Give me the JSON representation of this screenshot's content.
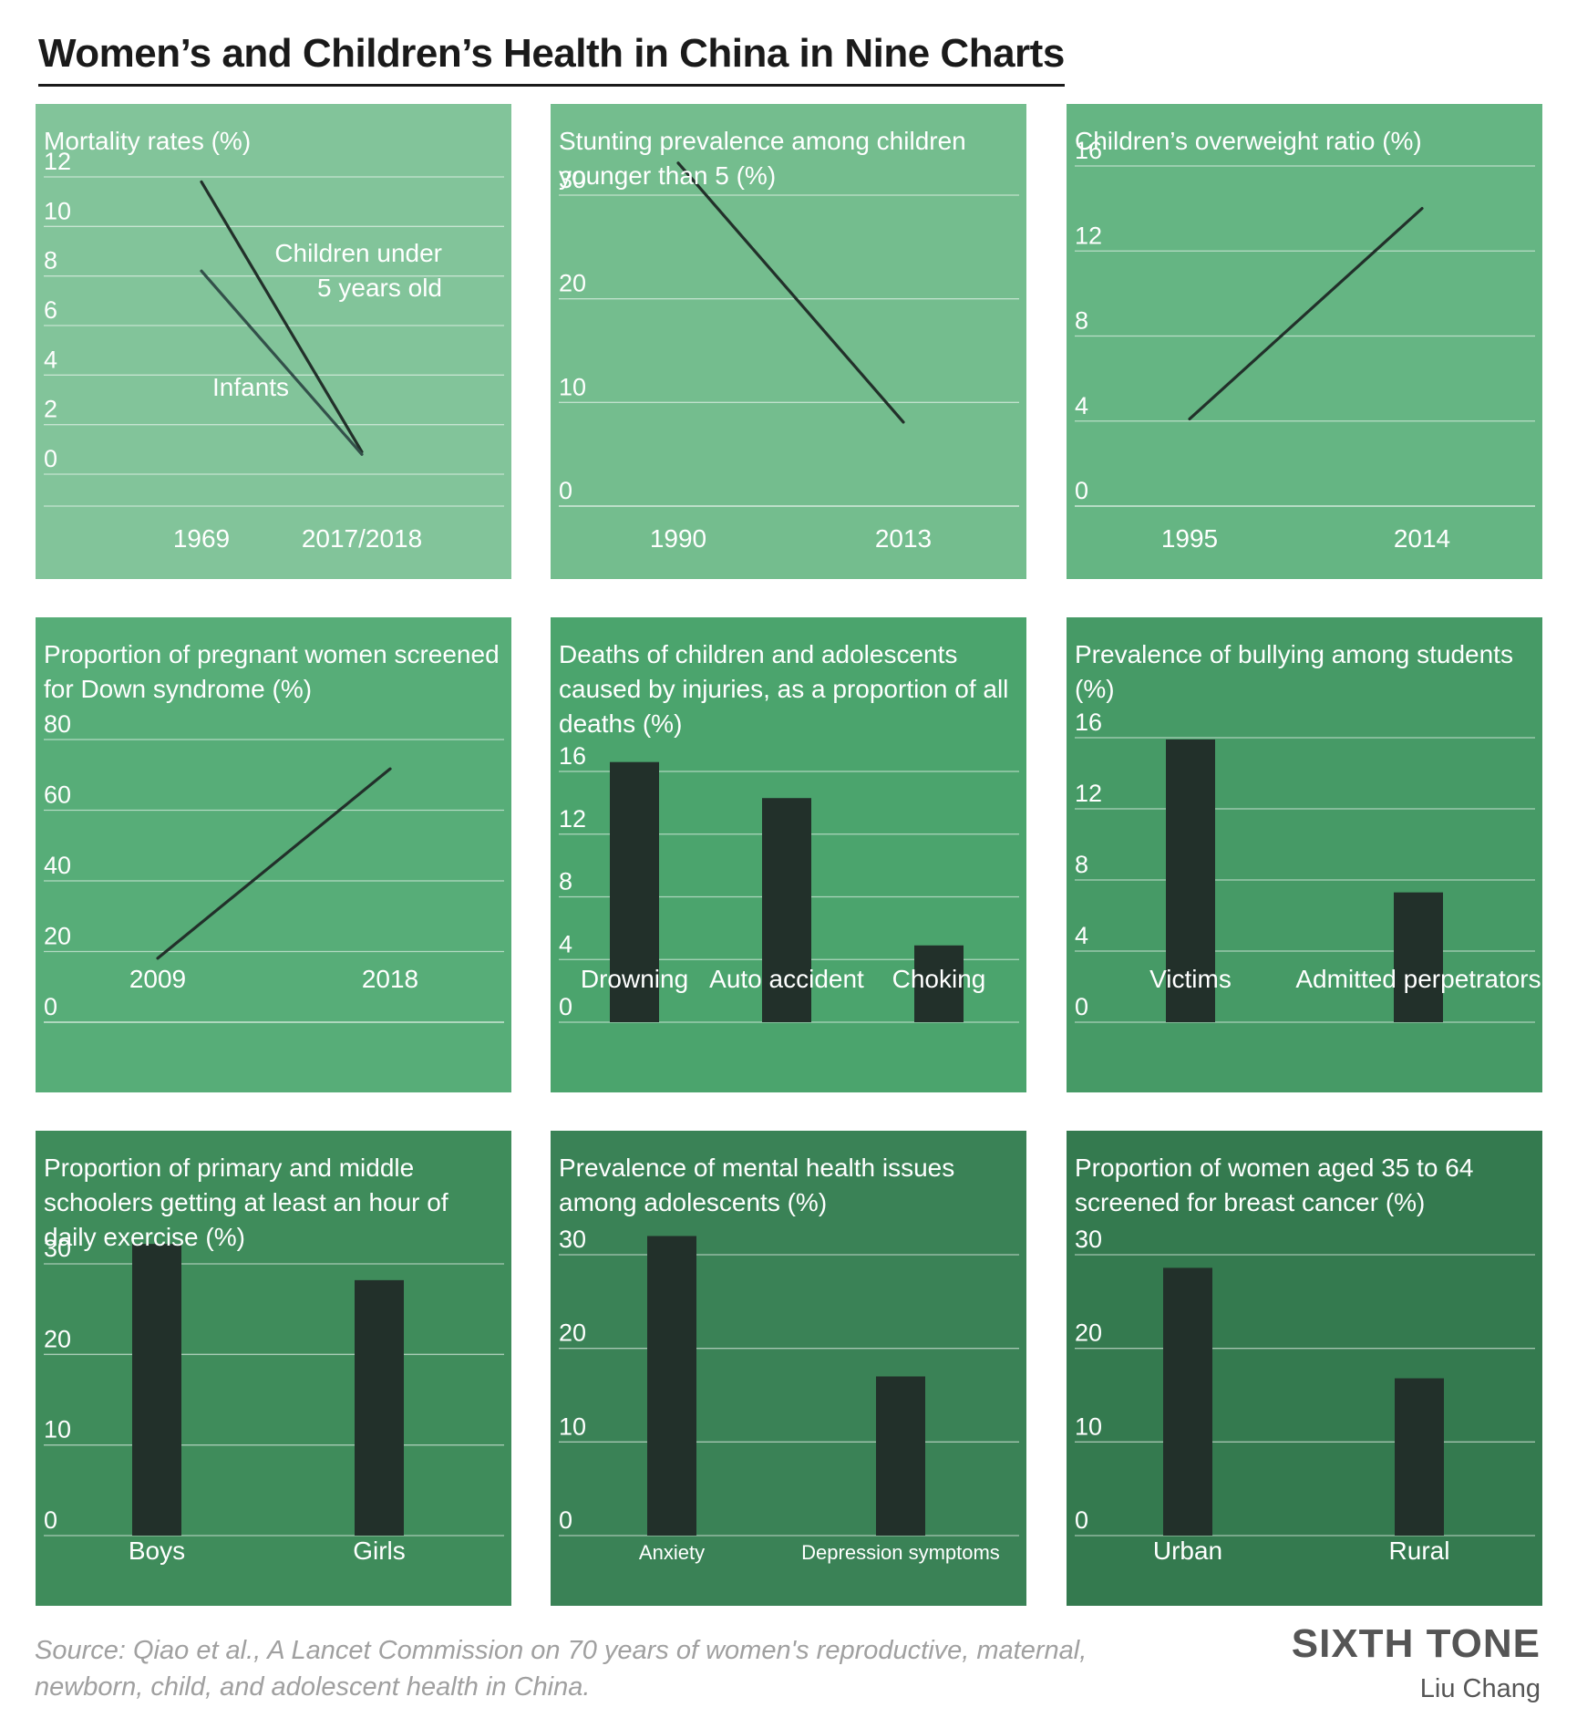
{
  "title": "Women’s and Children’s Health in China in Nine Charts",
  "source": "Source: Qiao et al., A Lancet Commission on 70 years of women's reproductive, maternal, newborn, child, and adolescent health in China.",
  "brand": "SIXTH TONE",
  "author": "Liu Chang",
  "colors": {
    "panels": [
      "#82c49a",
      "#74bd8e",
      "#65b583",
      "#57ad78",
      "#4ba46d",
      "#469a66",
      "#3f8c5b",
      "#3a8256",
      "#347a4f"
    ],
    "mark": "#22302a",
    "infant_line": "#33504a",
    "text": "#ffffff",
    "grid": "#ffffff"
  },
  "chart_data": [
    {
      "type": "line",
      "title": "Mortality rates (%)",
      "categories": [
        "1969",
        "2017/2018"
      ],
      "ylim": [
        0,
        12
      ],
      "yticks": [
        0,
        2,
        4,
        6,
        8,
        10,
        12
      ],
      "series": [
        {
          "name": "Children under 5 years old",
          "label_lines": [
            "Children under",
            "5 years old"
          ],
          "values": [
            11.8,
            0.9
          ]
        },
        {
          "name": "Infants",
          "label_lines": [
            "Infants"
          ],
          "values": [
            8.2,
            0.8
          ]
        }
      ],
      "grid": true
    },
    {
      "type": "line",
      "title": "Stunting prevalence among children younger than 5 (%)",
      "categories": [
        "1990",
        "2013"
      ],
      "ylim": [
        0,
        30
      ],
      "yticks": [
        0,
        10,
        20,
        30
      ],
      "series": [
        {
          "values": [
            33.1,
            8.1
          ]
        }
      ],
      "grid": true
    },
    {
      "type": "line",
      "title": "Children’s overweight ratio (%)",
      "categories": [
        "1995",
        "2014"
      ],
      "ylim": [
        0,
        16
      ],
      "yticks": [
        0,
        4,
        8,
        12,
        16
      ],
      "series": [
        {
          "values": [
            4.1,
            14.0
          ]
        }
      ],
      "grid": true
    },
    {
      "type": "line",
      "title": "Proportion of pregnant women screened for Down syndrome (%)",
      "categories": [
        "2009",
        "2018"
      ],
      "ylim": [
        0,
        80
      ],
      "yticks": [
        0,
        20,
        40,
        60,
        80
      ],
      "series": [
        {
          "values": [
            18.1,
            71.7
          ]
        }
      ],
      "grid": true
    },
    {
      "type": "bar",
      "title": "Deaths of children and adolescents caused by injuries, as a proportion of all deaths (%)",
      "categories": [
        "Drowning",
        "Auto accident",
        "Choking"
      ],
      "values": [
        16.6,
        14.3,
        4.9
      ],
      "ylim": [
        0,
        16
      ],
      "yticks": [
        0,
        4,
        8,
        12,
        16
      ],
      "grid": true
    },
    {
      "type": "bar",
      "title": "Prevalence of bullying among students (%)",
      "categories": [
        "Victims",
        "Admitted perpetrators"
      ],
      "values": [
        15.9,
        7.3
      ],
      "ylim": [
        0,
        16
      ],
      "yticks": [
        0,
        4,
        8,
        12,
        16
      ],
      "grid": true
    },
    {
      "type": "bar",
      "title": "Proportion of primary and middle schoolers getting at least an hour of daily exercise (%)",
      "categories": [
        "Boys",
        "Girls"
      ],
      "values": [
        32.2,
        28.2
      ],
      "ylim": [
        0,
        30
      ],
      "yticks": [
        0,
        10,
        20,
        30
      ],
      "grid": true
    },
    {
      "type": "bar",
      "title": "Prevalence of mental health issues among adolescents (%)",
      "categories": [
        "Anxiety",
        "Depression symptoms"
      ],
      "values": [
        32.0,
        17.0
      ],
      "ylim": [
        0,
        30
      ],
      "yticks": [
        0,
        10,
        20,
        30
      ],
      "grid": true
    },
    {
      "type": "bar",
      "title": "Proportion of women aged 35 to 64 screened for breast cancer (%)",
      "categories": [
        "Urban",
        "Rural"
      ],
      "values": [
        28.6,
        16.8
      ],
      "ylim": [
        0,
        30
      ],
      "yticks": [
        0,
        10,
        20,
        30
      ],
      "grid": true
    }
  ]
}
